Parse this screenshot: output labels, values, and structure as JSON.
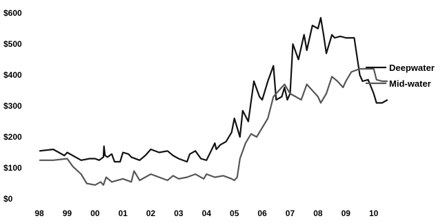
{
  "colors": {
    "deepwater": "#111111",
    "midwater": "#555555",
    "background": "#ffffff"
  },
  "chart_data": {
    "type": "line",
    "title": "",
    "xlabel": "",
    "ylabel": "",
    "grid": false,
    "legend": "right",
    "xlim": [
      1998,
      2010.9
    ],
    "ylim": [
      0,
      600
    ],
    "x_ticks": [
      {
        "v": 1998,
        "label": "98"
      },
      {
        "v": 1999,
        "label": "99"
      },
      {
        "v": 2000,
        "label": "00"
      },
      {
        "v": 2001,
        "label": "01"
      },
      {
        "v": 2002,
        "label": "02"
      },
      {
        "v": 2003,
        "label": "03"
      },
      {
        "v": 2004,
        "label": "04"
      },
      {
        "v": 2005,
        "label": "05"
      },
      {
        "v": 2006,
        "label": "06"
      },
      {
        "v": 2007,
        "label": "07"
      },
      {
        "v": 2008,
        "label": "08"
      },
      {
        "v": 2009,
        "label": "09"
      },
      {
        "v": 2010,
        "label": "10"
      }
    ],
    "y_ticks": [
      {
        "v": 0,
        "label": "$0"
      },
      {
        "v": 100,
        "label": "$100"
      },
      {
        "v": 200,
        "label": "$200"
      },
      {
        "v": 300,
        "label": "$300"
      },
      {
        "v": 400,
        "label": "$400"
      },
      {
        "v": 500,
        "label": "$500"
      },
      {
        "v": 600,
        "label": "$600"
      }
    ],
    "series": [
      {
        "name": "Deepwater",
        "x": [
          1998.0,
          1998.5,
          1998.9,
          1999.0,
          1999.5,
          1999.8,
          2000.0,
          2000.15,
          2000.3,
          2000.32,
          2000.36,
          2000.45,
          2000.6,
          2000.7,
          2000.9,
          2001.0,
          2001.2,
          2001.3,
          2001.6,
          2001.8,
          2002.0,
          2002.3,
          2002.6,
          2002.8,
          2003.0,
          2003.3,
          2003.4,
          2003.6,
          2003.8,
          2004.0,
          2004.3,
          2004.35,
          2004.5,
          2004.7,
          2004.9,
          2005.0,
          2005.2,
          2005.3,
          2005.5,
          2005.7,
          2005.9,
          2006.0,
          2006.2,
          2006.4,
          2006.5,
          2006.7,
          2006.8,
          2006.9,
          2007.0,
          2007.1,
          2007.3,
          2007.5,
          2007.6,
          2007.8,
          2008.0,
          2008.1,
          2008.2,
          2008.3,
          2008.5,
          2008.6,
          2008.8,
          2009.0,
          2009.3,
          2009.5,
          2009.6,
          2009.8,
          2010.0,
          2010.1,
          2010.3,
          2010.5
        ],
        "values": [
          155,
          160,
          140,
          150,
          125,
          130,
          130,
          125,
          135,
          170,
          140,
          135,
          145,
          120,
          120,
          150,
          145,
          135,
          125,
          140,
          160,
          150,
          155,
          140,
          130,
          120,
          145,
          155,
          130,
          125,
          180,
          160,
          175,
          185,
          215,
          260,
          200,
          285,
          250,
          380,
          330,
          320,
          380,
          430,
          320,
          330,
          360,
          320,
          340,
          500,
          450,
          530,
          480,
          560,
          550,
          585,
          530,
          470,
          530,
          520,
          525,
          520,
          520,
          400,
          380,
          385,
          340,
          310,
          310,
          320
        ]
      },
      {
        "name": "Mid-water",
        "x": [
          1998.0,
          1998.5,
          1999.0,
          1999.2,
          1999.5,
          1999.7,
          2000.0,
          2000.2,
          2000.3,
          2000.4,
          2000.6,
          2001.0,
          2001.3,
          2001.4,
          2001.6,
          2001.8,
          2002.0,
          2002.3,
          2002.6,
          2002.8,
          2003.0,
          2003.3,
          2003.6,
          2003.9,
          2004.0,
          2004.3,
          2004.6,
          2004.9,
          2005.0,
          2005.1,
          2005.2,
          2005.4,
          2005.6,
          2005.8,
          2006.0,
          2006.2,
          2006.4,
          2006.6,
          2006.8,
          2007.0,
          2007.2,
          2007.4,
          2007.6,
          2007.8,
          2008.0,
          2008.1,
          2008.3,
          2008.5,
          2008.7,
          2008.9,
          2009.0,
          2009.2,
          2009.5,
          2009.7,
          2010.0,
          2010.1,
          2010.3,
          2010.5
        ],
        "values": [
          125,
          125,
          130,
          105,
          80,
          50,
          45,
          55,
          45,
          70,
          55,
          65,
          55,
          90,
          60,
          70,
          80,
          70,
          60,
          75,
          65,
          70,
          80,
          65,
          80,
          70,
          75,
          65,
          60,
          70,
          130,
          180,
          210,
          200,
          230,
          260,
          330,
          350,
          370,
          340,
          330,
          320,
          370,
          350,
          330,
          310,
          340,
          395,
          380,
          360,
          380,
          410,
          420,
          420,
          420,
          385,
          380,
          380
        ]
      }
    ]
  }
}
